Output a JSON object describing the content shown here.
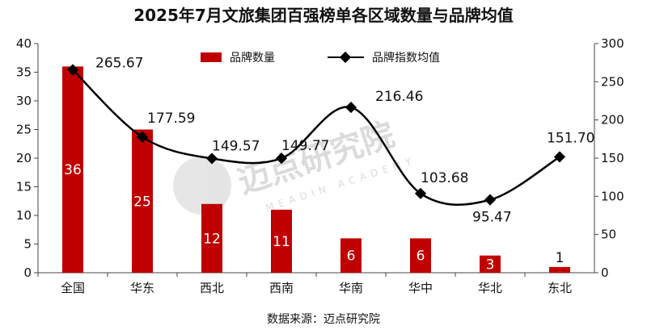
{
  "chart_data": {
    "type": "bar+line",
    "title": "2025年7月文旅集团百强榜单各区域数量与品牌均值",
    "categories": [
      "全国",
      "华东",
      "西北",
      "西南",
      "华南",
      "华中",
      "华北",
      "东北"
    ],
    "series": [
      {
        "name": "品牌数量",
        "type": "bar",
        "axis": "left",
        "color": "#c00000",
        "values": [
          36,
          25,
          12,
          11,
          6,
          6,
          3,
          1
        ]
      },
      {
        "name": "品牌指数均值",
        "type": "line",
        "axis": "right",
        "color": "#000000",
        "values": [
          265.67,
          177.59,
          149.57,
          149.77,
          216.46,
          103.68,
          95.47,
          151.7
        ],
        "labels": [
          "265.67",
          "177.59",
          "149.57",
          "149.77",
          "216.46",
          "103.68",
          "95.47",
          "151.70"
        ]
      }
    ],
    "y_left": {
      "min": 0,
      "max": 40,
      "step": 5
    },
    "y_right": {
      "min": 0,
      "max": 300,
      "step": 50
    },
    "legend_position": "top",
    "grid": false
  },
  "watermark": {
    "text": "迈点研究院",
    "sub": "MEADIN ACADEMY"
  },
  "source": "数据来源：迈点研究院"
}
